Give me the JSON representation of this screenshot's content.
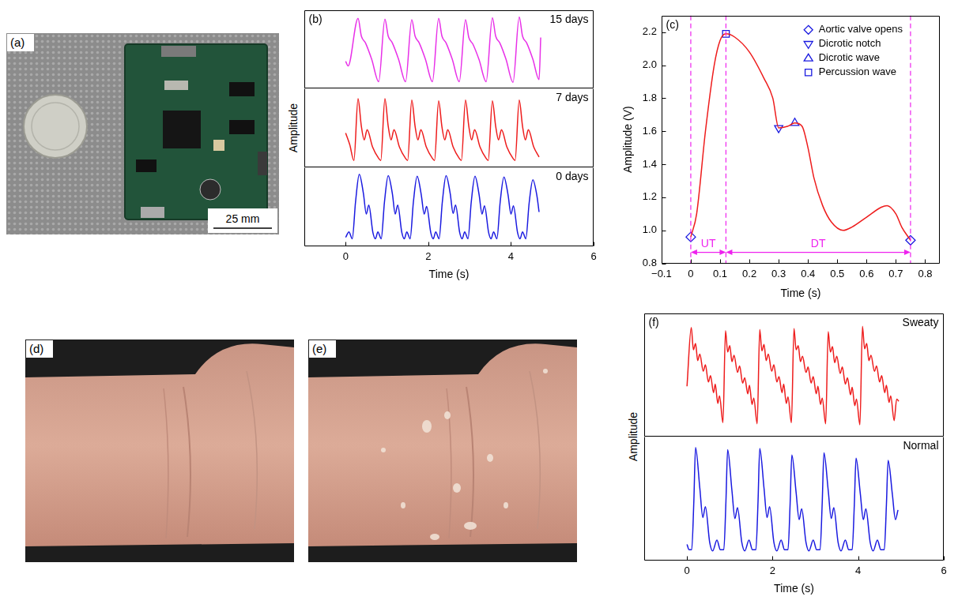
{
  "images": [
    {
      "label": "(a)",
      "scale_bar": "25 mm"
    },
    {
      "label": "(d)"
    },
    {
      "label": "(e)"
    }
  ],
  "chart_data": [
    {
      "label": "(b)",
      "type": "line",
      "x_label": "Time (s)",
      "y_label": "Amplitude",
      "xlim": [
        -1,
        6
      ],
      "xticks": [
        0,
        2,
        4,
        6
      ],
      "ylim": [
        -0.05,
        1.1
      ],
      "tick_labels": "x",
      "grid": false,
      "series": [
        {
          "name": "15 days",
          "color": "#e830e8",
          "x": [
            0,
            0.06,
            0.3,
            0.38,
            0.48,
            0.63,
            0.8,
            0.95,
            1.03,
            1.13,
            1.28,
            1.45,
            1.6,
            1.68,
            1.78,
            1.93,
            2.1,
            2.25,
            2.33,
            2.43,
            2.58,
            2.75,
            2.9,
            2.98,
            3.08,
            3.23,
            3.4,
            3.55,
            3.63,
            3.73,
            3.88,
            4.05,
            4.2,
            4.28,
            4.38,
            4.53,
            4.68,
            4.72
          ],
          "values": [
            0.35,
            0.28,
            0.98,
            0.72,
            0.62,
            0.38,
            0.05,
            0.97,
            0.72,
            0.62,
            0.38,
            0.05,
            0.96,
            0.72,
            0.62,
            0.38,
            0.05,
            0.98,
            0.72,
            0.62,
            0.38,
            0.05,
            0.96,
            0.7,
            0.6,
            0.37,
            0.05,
            0.99,
            0.72,
            0.62,
            0.38,
            0.04,
            1.0,
            0.72,
            0.62,
            0.38,
            0.08,
            0.7
          ]
        },
        {
          "name": "7 days",
          "color": "#ee1c1c",
          "x": [
            0,
            0.1,
            0.2,
            0.3,
            0.38,
            0.45,
            0.52,
            0.65,
            0.8,
            0.85,
            0.95,
            1.03,
            1.1,
            1.17,
            1.3,
            1.45,
            1.5,
            1.6,
            1.68,
            1.75,
            1.82,
            1.95,
            2.1,
            2.15,
            2.25,
            2.33,
            2.4,
            2.47,
            2.6,
            2.75,
            2.8,
            2.9,
            2.98,
            3.05,
            3.12,
            3.25,
            3.4,
            3.45,
            3.55,
            3.63,
            3.7,
            3.77,
            3.9,
            4.05,
            4.1,
            4.2,
            4.28,
            4.35,
            4.42,
            4.55,
            4.68
          ],
          "values": [
            0.45,
            0.28,
            0.05,
            0.95,
            0.55,
            0.35,
            0.5,
            0.25,
            0.08,
            0.05,
            0.95,
            0.55,
            0.35,
            0.5,
            0.25,
            0.08,
            0.05,
            0.93,
            0.55,
            0.35,
            0.5,
            0.25,
            0.08,
            0.05,
            0.92,
            0.54,
            0.35,
            0.5,
            0.25,
            0.08,
            0.05,
            0.93,
            0.55,
            0.35,
            0.5,
            0.25,
            0.08,
            0.05,
            0.92,
            0.55,
            0.35,
            0.5,
            0.25,
            0.08,
            0.05,
            0.93,
            0.55,
            0.35,
            0.5,
            0.25,
            0.1
          ]
        },
        {
          "name": "0 days",
          "color": "#1a1ae0",
          "x": [
            0,
            0.08,
            0.16,
            0.24,
            0.33,
            0.43,
            0.5,
            0.56,
            0.66,
            0.72,
            0.78,
            0.86,
            0.94,
            1.03,
            1.13,
            1.2,
            1.26,
            1.36,
            1.42,
            1.48,
            1.56,
            1.64,
            1.73,
            1.83,
            1.9,
            1.96,
            2.06,
            2.12,
            2.18,
            2.26,
            2.34,
            2.43,
            2.53,
            2.6,
            2.66,
            2.76,
            2.82,
            2.88,
            2.96,
            3.04,
            3.13,
            3.23,
            3.3,
            3.36,
            3.46,
            3.52,
            3.58,
            3.66,
            3.74,
            3.83,
            3.93,
            4.0,
            4.06,
            4.16,
            4.22,
            4.28,
            4.36,
            4.44,
            4.53,
            4.63,
            4.68
          ],
          "values": [
            0.08,
            0.16,
            0.06,
            0.6,
            1.0,
            0.72,
            0.42,
            0.55,
            0.15,
            0.06,
            0.16,
            0.06,
            0.6,
            0.98,
            0.72,
            0.42,
            0.55,
            0.15,
            0.06,
            0.16,
            0.06,
            0.6,
            0.97,
            0.7,
            0.42,
            0.53,
            0.15,
            0.06,
            0.16,
            0.06,
            0.6,
            0.98,
            0.72,
            0.43,
            0.55,
            0.15,
            0.06,
            0.16,
            0.06,
            0.6,
            0.97,
            0.7,
            0.42,
            0.54,
            0.15,
            0.06,
            0.16,
            0.06,
            0.6,
            0.96,
            0.7,
            0.42,
            0.54,
            0.15,
            0.06,
            0.16,
            0.06,
            0.58,
            0.92,
            0.68,
            0.45
          ]
        }
      ]
    },
    {
      "label": "(c)",
      "type": "line",
      "x_label": "Time (s)",
      "y_label": "Amplitude (V)",
      "xlim": [
        -0.1,
        0.85
      ],
      "xticks": [
        {
          "value": -0.1,
          "label": "−0.1"
        },
        0,
        0.1,
        0.2,
        0.3,
        0.4,
        0.5,
        0.6,
        0.7,
        0.8
      ],
      "ylim": [
        0.8,
        2.3
      ],
      "yticks": [
        0.8,
        {
          "value": 1,
          "label": "1.0"
        },
        1.2,
        1.4,
        1.6,
        1.8,
        {
          "value": 2,
          "label": "2.0"
        },
        2.2
      ],
      "grid": false,
      "legend": "upper right",
      "series": [
        {
          "type": "line",
          "color": "#ee1c1c",
          "x": [
            0,
            0.02,
            0.05,
            0.08,
            0.1,
            0.12,
            0.15,
            0.2,
            0.25,
            0.28,
            0.3,
            0.33,
            0.355,
            0.38,
            0.4,
            0.42,
            0.45,
            0.48,
            0.52,
            0.55,
            0.6,
            0.65,
            0.67,
            0.7,
            0.72,
            0.75
          ],
          "values": [
            0.96,
            1.1,
            1.6,
            2.0,
            2.15,
            2.19,
            2.17,
            2.08,
            1.92,
            1.8,
            1.62,
            1.63,
            1.65,
            1.63,
            1.5,
            1.32,
            1.15,
            1.05,
            1.0,
            1.02,
            1.08,
            1.14,
            1.15,
            1.1,
            1.02,
            0.94
          ]
        },
        {
          "type": "scatter",
          "name": "Aortic valve opens",
          "marker": "diamond",
          "color": "#1a1ae0",
          "x": [
            0,
            0.75
          ],
          "values": [
            0.96,
            0.94
          ]
        },
        {
          "type": "scatter",
          "name": "Dicrotic notch",
          "marker": "triangle_down",
          "color": "#1a1ae0",
          "x": [
            0.3
          ],
          "values": [
            1.62
          ]
        },
        {
          "type": "scatter",
          "name": "Dicrotic wave",
          "marker": "triangle",
          "color": "#1a1ae0",
          "x": [
            0.355
          ],
          "values": [
            1.65
          ]
        },
        {
          "type": "scatter",
          "name": "Percussion wave",
          "marker": "square",
          "color": "#1a1ae0",
          "x": [
            0.12
          ],
          "values": [
            2.19
          ]
        }
      ],
      "vlines": {
        "values": [
          0,
          0.12,
          0.75
        ],
        "color": "#ee22ee",
        "line_style": "dashed"
      },
      "spans": [
        {
          "text": "UT",
          "from": 0,
          "to": 0.12,
          "color": "#ee22ee"
        },
        {
          "text": "DT",
          "from": 0.12,
          "to": 0.75,
          "color": "#ee22ee"
        }
      ]
    },
    {
      "label": "(f)",
      "type": "line",
      "x_label": "Time (s)",
      "y_label": "Amplitude",
      "xlim": [
        -1,
        6
      ],
      "xticks": [
        0,
        2,
        4,
        6
      ],
      "ylim": [
        -0.05,
        1.1
      ],
      "tick_labels": "x",
      "grid": false,
      "series": [
        {
          "name": "Sweaty",
          "color": "#ee1c1c",
          "x": [
            0,
            0.1,
            0.15,
            0.2,
            0.25,
            0.3,
            0.38,
            0.43,
            0.5,
            0.55,
            0.62,
            0.66,
            0.72,
            0.76,
            0.84,
            0.9,
            0.95,
            1.0,
            1.05,
            1.1,
            1.18,
            1.23,
            1.3,
            1.35,
            1.42,
            1.46,
            1.52,
            1.56,
            1.64,
            1.7,
            1.75,
            1.8,
            1.85,
            1.9,
            1.98,
            2.03,
            2.1,
            2.15,
            2.22,
            2.26,
            2.32,
            2.36,
            2.44,
            2.5,
            2.55,
            2.6,
            2.65,
            2.7,
            2.78,
            2.83,
            2.9,
            2.95,
            3.02,
            3.06,
            3.12,
            3.16,
            3.24,
            3.3,
            3.35,
            3.4,
            3.45,
            3.5,
            3.58,
            3.63,
            3.7,
            3.75,
            3.82,
            3.86,
            3.92,
            3.96,
            4.04,
            4.1,
            4.15,
            4.2,
            4.25,
            4.3,
            4.38,
            4.43,
            4.5,
            4.55,
            4.62,
            4.66,
            4.72,
            4.76,
            4.84,
            4.9,
            4.95
          ],
          "values": [
            0.42,
            0.97,
            0.76,
            0.82,
            0.66,
            0.72,
            0.56,
            0.62,
            0.46,
            0.52,
            0.36,
            0.44,
            0.26,
            0.33,
            0.08,
            0.94,
            0.74,
            0.8,
            0.65,
            0.71,
            0.55,
            0.61,
            0.45,
            0.5,
            0.35,
            0.43,
            0.25,
            0.31,
            0.07,
            0.95,
            0.75,
            0.81,
            0.66,
            0.72,
            0.56,
            0.62,
            0.46,
            0.51,
            0.36,
            0.44,
            0.26,
            0.32,
            0.08,
            0.96,
            0.76,
            0.8,
            0.65,
            0.7,
            0.55,
            0.6,
            0.45,
            0.51,
            0.35,
            0.42,
            0.25,
            0.31,
            0.07,
            0.93,
            0.74,
            0.79,
            0.64,
            0.7,
            0.54,
            0.6,
            0.44,
            0.5,
            0.34,
            0.41,
            0.24,
            0.3,
            0.06,
            0.98,
            0.77,
            0.82,
            0.66,
            0.71,
            0.56,
            0.61,
            0.46,
            0.52,
            0.36,
            0.43,
            0.27,
            0.33,
            0.1,
            0.3,
            0.28
          ]
        },
        {
          "name": "Normal",
          "color": "#1a1ae0",
          "x": [
            0,
            0.05,
            0.11,
            0.16,
            0.2,
            0.3,
            0.37,
            0.43,
            0.53,
            0.6,
            0.7,
            0.78,
            0.86,
            0.91,
            0.95,
            1.05,
            1.12,
            1.18,
            1.28,
            1.35,
            1.45,
            1.53,
            1.61,
            1.66,
            1.7,
            1.8,
            1.87,
            1.93,
            2.03,
            2.1,
            2.2,
            2.28,
            2.36,
            2.41,
            2.45,
            2.55,
            2.62,
            2.68,
            2.78,
            2.85,
            2.95,
            3.03,
            3.11,
            3.16,
            3.2,
            3.3,
            3.37,
            3.43,
            3.53,
            3.6,
            3.7,
            3.78,
            3.86,
            3.91,
            3.95,
            4.05,
            4.12,
            4.18,
            4.28,
            4.35,
            4.45,
            4.53,
            4.61,
            4.66,
            4.7,
            4.8,
            4.87,
            4.93
          ],
          "values": [
            0.1,
            0.05,
            0.05,
            0.5,
            1.0,
            0.62,
            0.35,
            0.45,
            0.12,
            0.04,
            0.14,
            0.05,
            0.05,
            0.5,
            0.98,
            0.6,
            0.34,
            0.44,
            0.12,
            0.04,
            0.14,
            0.05,
            0.05,
            0.5,
            0.99,
            0.62,
            0.35,
            0.45,
            0.12,
            0.04,
            0.14,
            0.05,
            0.05,
            0.48,
            0.93,
            0.58,
            0.33,
            0.43,
            0.12,
            0.04,
            0.14,
            0.05,
            0.05,
            0.49,
            0.95,
            0.6,
            0.34,
            0.44,
            0.12,
            0.04,
            0.14,
            0.05,
            0.05,
            0.47,
            0.9,
            0.57,
            0.33,
            0.43,
            0.12,
            0.04,
            0.14,
            0.05,
            0.05,
            0.47,
            0.88,
            0.56,
            0.33,
            0.42
          ]
        }
      ]
    }
  ]
}
